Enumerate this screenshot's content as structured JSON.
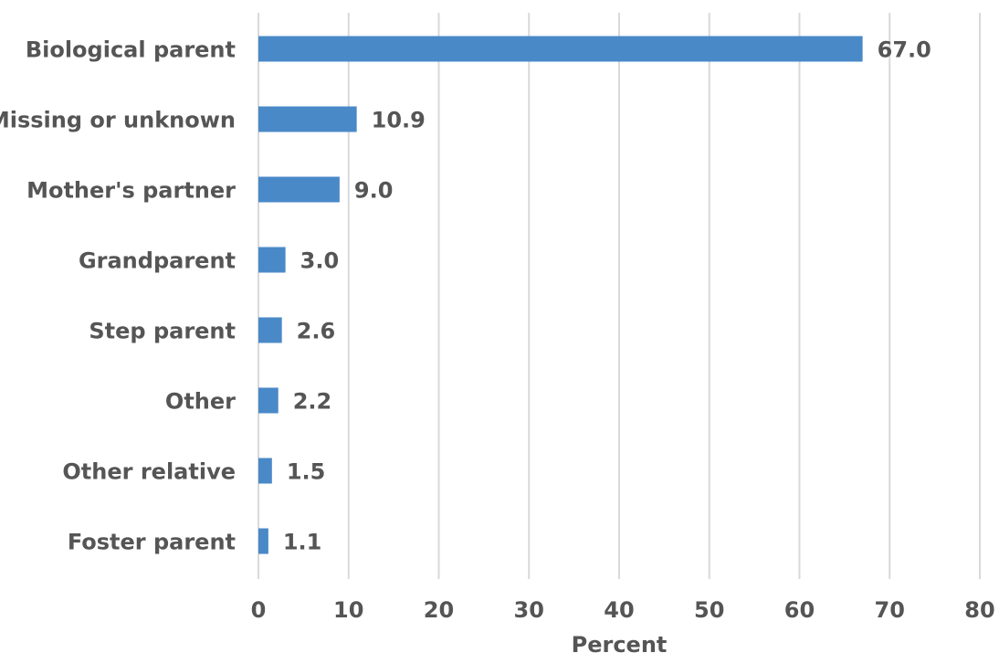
{
  "chart_data": {
    "type": "bar",
    "orientation": "horizontal",
    "categories": [
      "Biological parent",
      "Missing or unknown",
      "Mother's partner",
      "Grandparent",
      "Step parent",
      "Other",
      "Other relative",
      "Foster parent"
    ],
    "values": [
      67.0,
      10.9,
      9.0,
      3.0,
      2.6,
      2.2,
      1.5,
      1.1
    ],
    "value_labels": [
      "67.0",
      "10.9",
      "9.0",
      "3.0",
      "2.6",
      "2.2",
      "1.5",
      "1.1"
    ],
    "xlabel": "Percent",
    "ylabel": "",
    "xlim": [
      0,
      80
    ],
    "xticks": [
      0,
      10,
      20,
      30,
      40,
      50,
      60,
      70,
      80
    ],
    "xtick_labels": [
      "0",
      "10",
      "20",
      "30",
      "40",
      "50",
      "60",
      "70",
      "80"
    ],
    "grid": "vertical",
    "legend": "none",
    "bar_color": "#4a89c8"
  }
}
